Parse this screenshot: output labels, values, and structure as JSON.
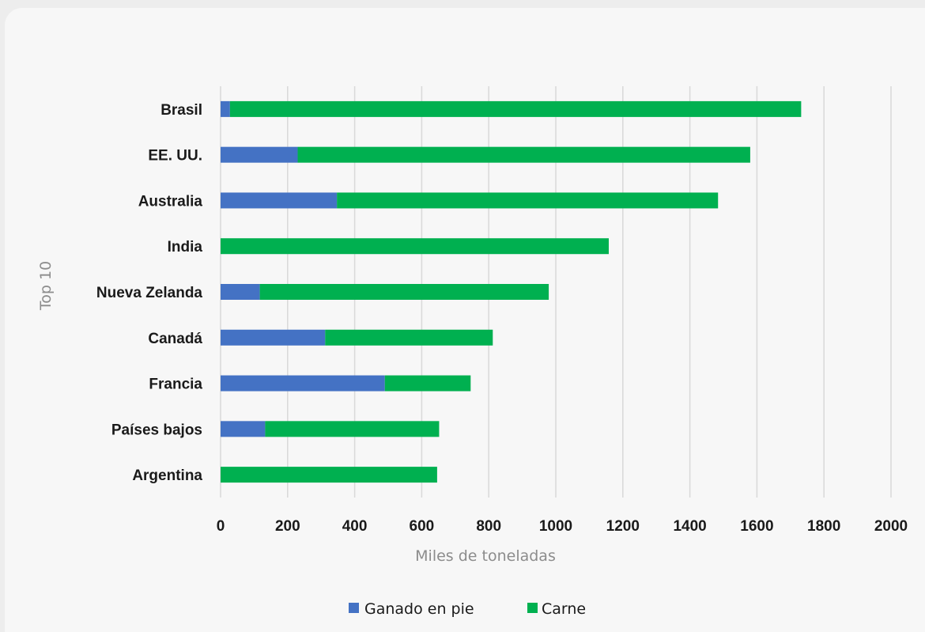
{
  "chart_data": {
    "type": "bar",
    "orientation": "horizontal",
    "stacked": true,
    "categories": [
      "Brasil",
      "EE. UU.",
      "Australia",
      "India",
      "Nueva Zelanda",
      "Canadá",
      "Francia",
      "Países bajos",
      "Argentina"
    ],
    "series": [
      {
        "name": "Ganado en pie",
        "color": "#4472c4",
        "values": [
          28,
          230,
          347,
          0,
          117,
          312,
          490,
          133,
          0
        ]
      },
      {
        "name": "Carne",
        "color": "#00b050",
        "values": [
          1704,
          1350,
          1137,
          1158,
          862,
          500,
          256,
          519,
          646
        ]
      }
    ],
    "xlabel": "Miles de toneladas",
    "ylabel": "Top 10",
    "xlim": [
      0,
      2000
    ],
    "xticks": [
      "0",
      "200",
      "400",
      "600",
      "800",
      "1000",
      "1200",
      "1400",
      "1600",
      "1800",
      "2000"
    ],
    "grid": "vertical",
    "legend_position": "bottom"
  }
}
